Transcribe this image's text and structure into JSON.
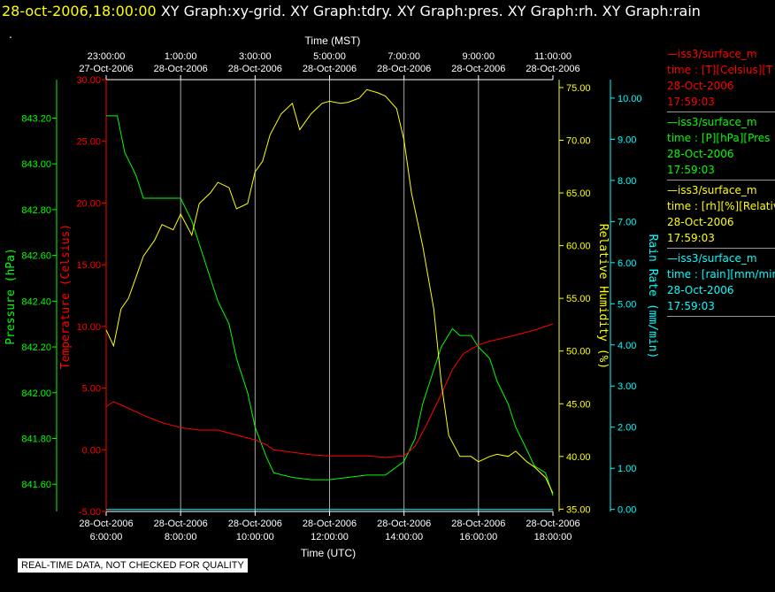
{
  "header": {
    "timestamp": "28-oct-2006,18:00:00",
    "graphs": [
      "XY Graph:xy-grid.",
      "XY Graph:tdry.",
      "XY Graph:pres.",
      "XY Graph:rh.",
      "XY Graph:rain"
    ],
    "mark": "."
  },
  "footer_note": "REAL-TIME DATA, NOT CHECKED FOR QUALITY",
  "colors": {
    "temperature": "#ff0000",
    "pressure": "#00ff00",
    "humidity": "#ffff00",
    "rain": "#00ffff",
    "axis": "#ffffff",
    "grid": "#aaaaaa"
  },
  "legend": [
    {
      "name": "—iss3/surface_m",
      "line2": "time : [T][Celsius][T",
      "date": "28-Oct-2006",
      "time": "17:59:03",
      "color": "#ff0000"
    },
    {
      "name": "—iss3/surface_m",
      "line2": "time : [P][hPa][Pres",
      "date": "28-Oct-2006",
      "time": "17:59:03",
      "color": "#00ff00"
    },
    {
      "name": "—iss3/surface_m",
      "line2": "time : [rh][%][Relativ",
      "date": "28-Oct-2006",
      "time": "17:59:03",
      "color": "#ffff00"
    },
    {
      "name": "—iss3/surface_m",
      "line2": "time : [rain][mm/min",
      "date": "28-Oct-2006",
      "time": "17:59:03",
      "color": "#00ffff"
    }
  ],
  "chart_data": {
    "type": "line",
    "xlabel_top": "Time (MST)",
    "xlabel_bottom": "Time (UTC)",
    "x_range": [
      6.0,
      18.0
    ],
    "x_ticks": [
      6,
      8,
      10,
      12,
      14,
      16,
      18
    ],
    "top_tick_labels": [
      {
        "time": "23:00:00",
        "date": "27-Oct-2006"
      },
      {
        "time": "1:00:00",
        "date": "28-Oct-2006"
      },
      {
        "time": "3:00:00",
        "date": "28-Oct-2006"
      },
      {
        "time": "5:00:00",
        "date": "28-Oct-2006"
      },
      {
        "time": "7:00:00",
        "date": "28-Oct-2006"
      },
      {
        "time": "9:00:00",
        "date": "28-Oct-2006"
      },
      {
        "time": "11:00:00",
        "date": "28-Oct-2006"
      }
    ],
    "bottom_tick_labels": [
      {
        "date": "28-Oct-2006",
        "time": "6:00:00"
      },
      {
        "date": "28-Oct-2006",
        "time": "8:00:00"
      },
      {
        "date": "28-Oct-2006",
        "time": "10:00:00"
      },
      {
        "date": "28-Oct-2006",
        "time": "12:00:00"
      },
      {
        "date": "28-Oct-2006",
        "time": "14:00:00"
      },
      {
        "date": "28-Oct-2006",
        "time": "16:00:00"
      },
      {
        "date": "28-Oct-2006",
        "time": "18:00:00"
      }
    ],
    "grid": true,
    "series": [
      {
        "key": "pressure",
        "axis_label": "Pressure (hPa)",
        "ylim": [
          841.481,
          843.368
        ],
        "ticks": [
          841.6,
          841.8,
          842.0,
          842.2,
          842.4,
          842.6,
          842.8,
          843.0,
          843.2
        ],
        "tick_labels": [
          "841.60",
          "841.80",
          "842.00",
          "842.20",
          "842.40",
          "842.60",
          "842.80",
          "843.00",
          "843.20"
        ],
        "x": [
          6.0,
          6.3,
          6.5,
          6.8,
          7.0,
          7.3,
          7.5,
          7.8,
          8.0,
          8.3,
          8.5,
          8.8,
          9.0,
          9.3,
          9.5,
          9.8,
          10.0,
          10.3,
          10.5,
          11.0,
          11.5,
          12.0,
          12.5,
          13.0,
          13.5,
          14.0,
          14.3,
          14.5,
          14.8,
          15.0,
          15.3,
          15.5,
          15.8,
          16.0,
          16.3,
          16.5,
          16.8,
          17.0,
          17.3,
          17.5,
          17.8,
          18.0
        ],
        "values": [
          843.21,
          843.21,
          843.05,
          842.95,
          842.85,
          842.85,
          842.85,
          842.85,
          842.85,
          842.75,
          842.65,
          842.5,
          842.4,
          842.3,
          842.15,
          842.0,
          841.85,
          841.72,
          841.65,
          841.63,
          841.62,
          841.62,
          841.63,
          841.64,
          841.64,
          841.7,
          841.8,
          841.95,
          842.1,
          842.2,
          842.28,
          842.25,
          842.25,
          842.2,
          842.15,
          842.05,
          841.95,
          841.85,
          841.75,
          841.68,
          841.65,
          841.55
        ]
      },
      {
        "key": "temperature",
        "axis_label": "Temperature (Celsius)",
        "ylim": [
          -5.0,
          30.0
        ],
        "ticks": [
          -5,
          0,
          5,
          10,
          15,
          20,
          25,
          30
        ],
        "tick_labels": [
          "-5.00",
          "0.00",
          "5.00",
          "10.00",
          "15.00",
          "20.00",
          "25.00",
          "30.00"
        ],
        "x": [
          6.0,
          6.2,
          6.5,
          7.0,
          7.5,
          8.0,
          8.5,
          9.0,
          9.5,
          10.0,
          10.3,
          10.5,
          11.0,
          11.5,
          12.0,
          12.5,
          13.0,
          13.5,
          14.0,
          14.3,
          14.6,
          15.0,
          15.3,
          15.6,
          16.0,
          16.3,
          16.6,
          17.0,
          17.5,
          18.0
        ],
        "values": [
          3.5,
          3.9,
          3.5,
          2.8,
          2.2,
          1.8,
          1.6,
          1.6,
          1.2,
          0.8,
          0.4,
          0.0,
          -0.2,
          -0.4,
          -0.5,
          -0.5,
          -0.5,
          -0.6,
          -0.5,
          0.3,
          2.0,
          4.5,
          6.5,
          7.8,
          8.5,
          8.8,
          9.0,
          9.3,
          9.7,
          10.2
        ]
      },
      {
        "key": "humidity",
        "axis_label": "Relative Humidity (%)",
        "ylim": [
          34.78,
          75.75
        ],
        "ticks": [
          35,
          40,
          45,
          50,
          55,
          60,
          65,
          70,
          75
        ],
        "tick_labels": [
          "35.00",
          "40.00",
          "45.00",
          "50.00",
          "55.00",
          "60.00",
          "65.00",
          "70.00",
          "75.00"
        ],
        "x": [
          6.0,
          6.2,
          6.4,
          6.6,
          6.8,
          7.0,
          7.3,
          7.5,
          7.8,
          8.0,
          8.3,
          8.5,
          8.8,
          9.0,
          9.3,
          9.5,
          9.8,
          10.0,
          10.2,
          10.4,
          10.7,
          11.0,
          11.2,
          11.5,
          11.8,
          12.0,
          12.3,
          12.5,
          12.8,
          13.0,
          13.3,
          13.5,
          13.8,
          14.0,
          14.2,
          14.5,
          14.8,
          15.0,
          15.2,
          15.5,
          15.8,
          16.0,
          16.3,
          16.5,
          16.8,
          17.0,
          17.3,
          17.5,
          17.8,
          18.0
        ],
        "values": [
          52,
          50.5,
          54,
          55,
          57,
          59,
          60.5,
          62,
          61.5,
          63,
          61,
          64,
          65,
          66,
          65.5,
          63.5,
          64,
          67,
          68,
          70.5,
          72.5,
          73.5,
          71,
          72.5,
          73.5,
          73.7,
          73.5,
          73.6,
          74,
          74.8,
          74.5,
          74.2,
          73,
          70,
          65,
          60,
          54,
          47,
          42,
          40,
          40,
          39.5,
          40,
          40.2,
          40,
          40.5,
          39.5,
          39,
          38,
          36.5
        ]
      },
      {
        "key": "rain",
        "axis_label": "Rain Rate (mm/min)",
        "ylim": [
          -0.05,
          10.45
        ],
        "ticks": [
          0,
          1,
          2,
          3,
          4,
          5,
          6,
          7,
          8,
          9,
          10
        ],
        "tick_labels": [
          "0.00",
          "1.00",
          "2.00",
          "3.00",
          "4.00",
          "5.00",
          "6.00",
          "7.00",
          "8.00",
          "9.00",
          "10.00"
        ],
        "x": [
          6.0,
          18.0
        ],
        "values": [
          0.0,
          0.0
        ]
      }
    ]
  }
}
